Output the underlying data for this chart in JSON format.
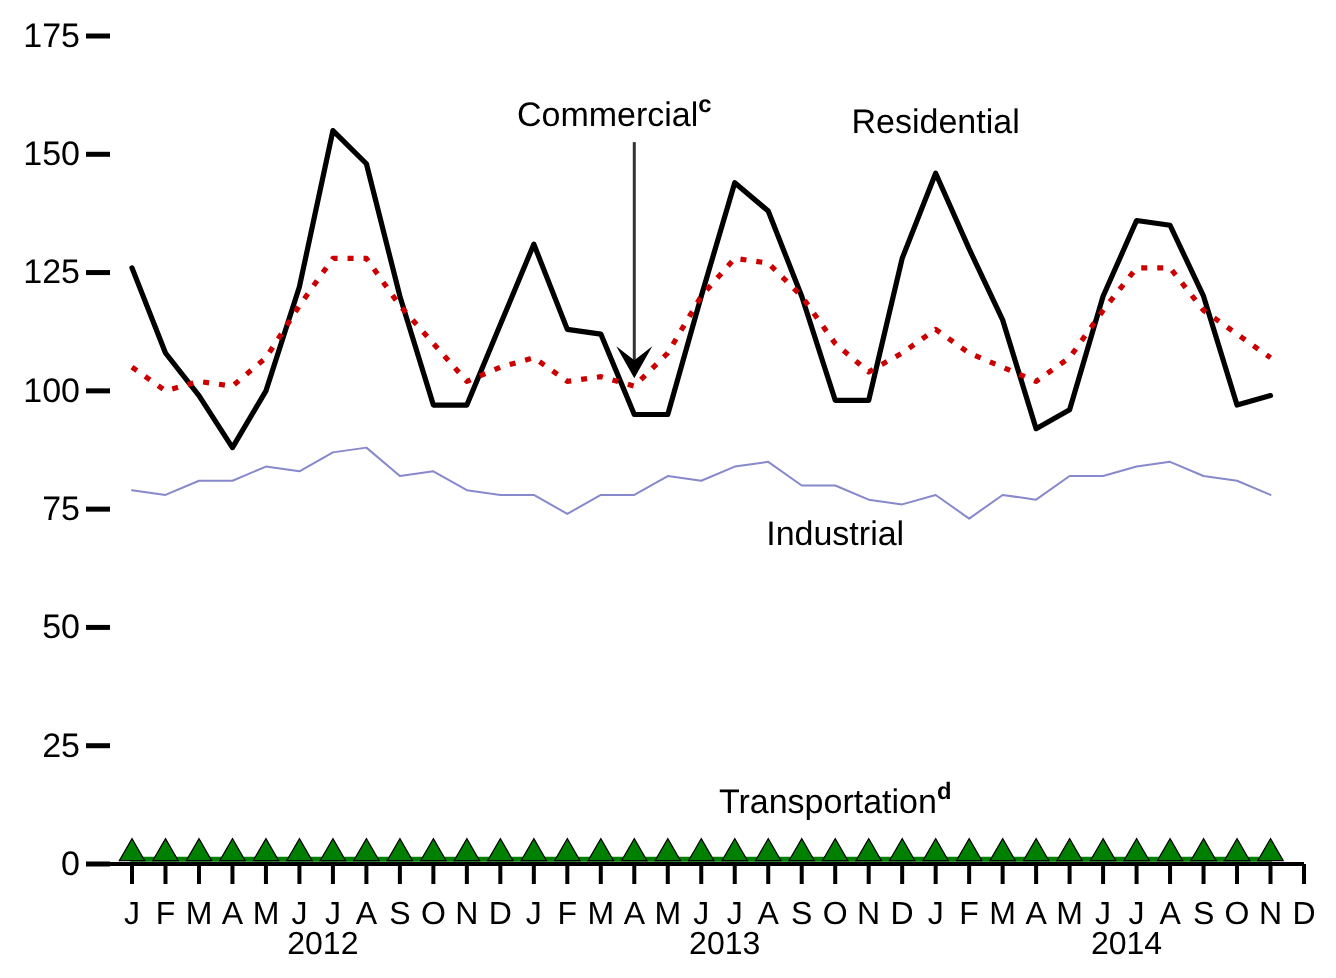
{
  "chart_data": {
    "type": "line",
    "categories": [
      "J",
      "F",
      "M",
      "A",
      "M",
      "J",
      "J",
      "A",
      "S",
      "O",
      "N",
      "D",
      "J",
      "F",
      "M",
      "A",
      "M",
      "J",
      "J",
      "A",
      "S",
      "O",
      "N",
      "D",
      "J",
      "F",
      "M",
      "A",
      "M",
      "J",
      "J",
      "A",
      "S",
      "O",
      "N",
      "D"
    ],
    "series": [
      {
        "name": "Residential",
        "color": "#000000",
        "line_style": "solid",
        "marker": "none",
        "values": [
          126,
          108,
          99,
          88,
          100,
          122,
          155,
          148,
          120,
          97,
          97,
          114,
          131,
          113,
          112,
          95,
          95,
          120,
          144,
          138,
          120,
          98,
          98,
          128,
          146,
          130,
          115,
          92,
          96,
          120,
          136,
          135,
          120,
          97,
          99,
          null
        ]
      },
      {
        "name": "Commercial$^{c}$",
        "color": "#cc0000",
        "line_style": "dotted",
        "marker": "none",
        "values": [
          105,
          100,
          102,
          101,
          107,
          118,
          128,
          128,
          118,
          110,
          102,
          105,
          107,
          102,
          103,
          101,
          108,
          120,
          128,
          127,
          120,
          110,
          104,
          108,
          113,
          108,
          105,
          102,
          107,
          117,
          126,
          126,
          117,
          112,
          107,
          null
        ]
      },
      {
        "name": "Industrial",
        "color": "#8888cc",
        "line_style": "solid",
        "marker": "none",
        "values": [
          79,
          78,
          81,
          81,
          84,
          83,
          87,
          88,
          82,
          83,
          79,
          78,
          78,
          74,
          78,
          78,
          82,
          81,
          84,
          85,
          80,
          80,
          77,
          76,
          78,
          73,
          78,
          77,
          82,
          82,
          84,
          85,
          82,
          81,
          78,
          null
        ]
      },
      {
        "name": "Transportation$^{d}$",
        "color": "#008000",
        "line_style": "solid",
        "marker": "triangle",
        "values": [
          1,
          1,
          1,
          1,
          1,
          1,
          1,
          1,
          1,
          1,
          1,
          1,
          1,
          1,
          1,
          1,
          1,
          1,
          1,
          1,
          1,
          1,
          1,
          1,
          1,
          1,
          1,
          1,
          1,
          1,
          1,
          1,
          1,
          1,
          1,
          null
        ]
      }
    ],
    "ylim": [
      0,
      175
    ],
    "yticks": [
      0,
      25,
      50,
      75,
      100,
      125,
      150,
      175
    ],
    "annotations": [
      "2012",
      "2013",
      "2014"
    ]
  }
}
